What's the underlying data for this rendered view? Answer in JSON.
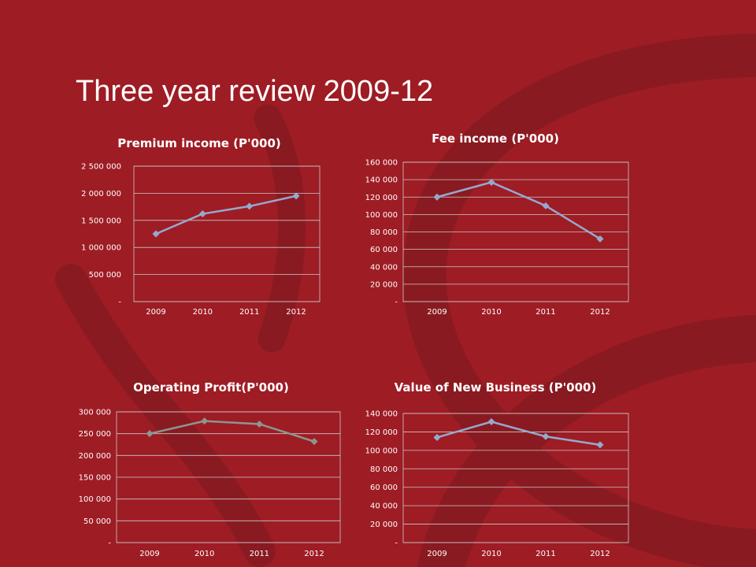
{
  "title": "Three year review 2009-12",
  "colors": {
    "background": "#9e1c24",
    "swirl": "#8a1a21",
    "gridline": "#c9c9c9",
    "series_blue": "#95a9cf",
    "series_grey": "#8a9690"
  },
  "chart_data": [
    {
      "type": "line",
      "title": "Premium income (P'000)",
      "categories": [
        "2009",
        "2010",
        "2011",
        "2012"
      ],
      "series": [
        {
          "values": [
            1250000,
            1620000,
            1760000,
            1950000
          ]
        }
      ],
      "ylim": [
        0,
        2500000
      ],
      "yticks": [
        0,
        500000,
        1000000,
        1500000,
        2000000,
        2500000
      ],
      "ytick_labels": [
        "-",
        "500 000",
        "1 000 000",
        "1 500 000",
        "2 000 000",
        "2 500 000"
      ],
      "line_color": "#95a9cf",
      "grid": true
    },
    {
      "type": "line",
      "title": "Fee income (P'000)",
      "categories": [
        "2009",
        "2010",
        "2011",
        "2012"
      ],
      "series": [
        {
          "values": [
            120000,
            137000,
            110000,
            72000
          ]
        }
      ],
      "ylim": [
        0,
        160000
      ],
      "yticks": [
        0,
        20000,
        40000,
        60000,
        80000,
        100000,
        120000,
        140000,
        160000
      ],
      "ytick_labels": [
        "-",
        "20 000",
        "40 000",
        "60 000",
        "80 000",
        "100 000",
        "120 000",
        "140 000",
        "160 000"
      ],
      "line_color": "#95a9cf",
      "grid": true
    },
    {
      "type": "line",
      "title": "Operating Profit(P'000)",
      "categories": [
        "2009",
        "2010",
        "2011",
        "2012"
      ],
      "series": [
        {
          "values": [
            250000,
            279000,
            272000,
            232000
          ]
        }
      ],
      "ylim": [
        0,
        300000
      ],
      "yticks": [
        0,
        50000,
        100000,
        150000,
        200000,
        250000,
        300000
      ],
      "ytick_labels": [
        "-",
        "50 000",
        "100 000",
        "150 000",
        "200 000",
        "250 000",
        "300 000"
      ],
      "line_color": "#8a9690",
      "grid": true
    },
    {
      "type": "line",
      "title": "Value of New Business (P'000)",
      "categories": [
        "2009",
        "2010",
        "2011",
        "2012"
      ],
      "series": [
        {
          "values": [
            114000,
            131000,
            115000,
            106000
          ]
        }
      ],
      "ylim": [
        0,
        140000
      ],
      "yticks": [
        0,
        20000,
        40000,
        60000,
        80000,
        100000,
        120000,
        140000
      ],
      "ytick_labels": [
        "-",
        "20 000",
        "40 000",
        "60 000",
        "80 000",
        "100 000",
        "120 000",
        "140 000"
      ],
      "line_color": "#95a9cf",
      "grid": true
    }
  ]
}
